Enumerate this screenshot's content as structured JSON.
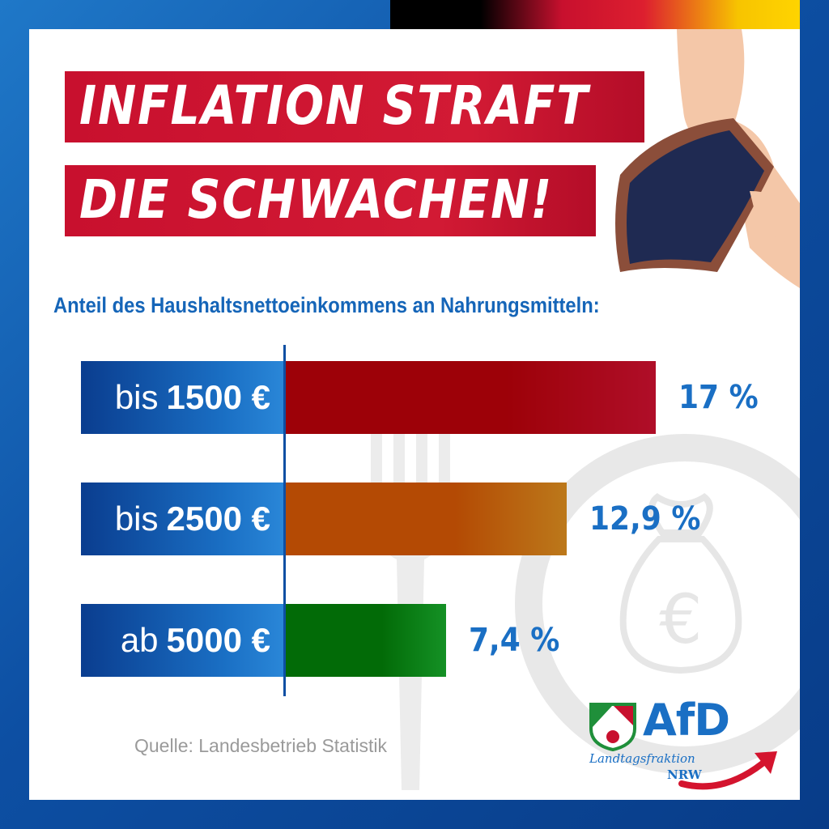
{
  "title": {
    "line1": "INFLATION STRAFT",
    "line2": "DIE SCHWACHEN!"
  },
  "subtitle": "Anteil des Haushaltsnettoeinkommens an Nahrungsmitteln:",
  "chart_data": {
    "type": "bar",
    "orientation": "horizontal",
    "categories": [
      "bis 1500 €",
      "bis 2500 €",
      "ab 5000 €"
    ],
    "values": [
      17,
      12.9,
      7.4
    ],
    "value_labels": [
      "17 %",
      "12,9 %",
      "7,4 %"
    ],
    "bar_colors": [
      "#c8102e",
      "#d6891e",
      "#17a52a"
    ],
    "category_parts": [
      {
        "prefix": "bis",
        "amount": "1500 €"
      },
      {
        "prefix": "bis",
        "amount": "2500 €"
      },
      {
        "prefix": "ab",
        "amount": "5000 €"
      }
    ],
    "xlim": [
      0,
      17
    ]
  },
  "source": "Quelle: Landesbetrieb Statistik",
  "logo": {
    "name": "AfD",
    "line1": "Landtagsfraktion",
    "line2": "NRW"
  },
  "colors": {
    "brand_blue": "#1a6fc4",
    "brand_red": "#c8102e"
  }
}
